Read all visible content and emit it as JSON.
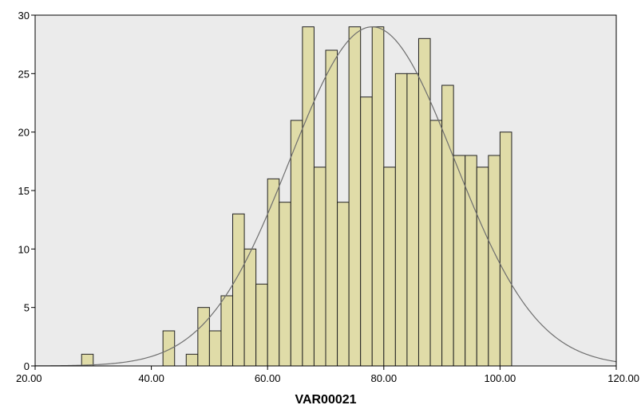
{
  "chart_data": {
    "type": "bar",
    "subtype": "histogram",
    "xlabel": "VAR00021",
    "ylabel": "",
    "xlim": [
      20,
      120
    ],
    "ylim": [
      0,
      30
    ],
    "x_ticks": [
      "20.00",
      "40.00",
      "60.00",
      "80.00",
      "100.00",
      "120.00"
    ],
    "y_ticks": [
      "0",
      "5",
      "10",
      "15",
      "20",
      "25",
      "30"
    ],
    "bin_width": 2,
    "bins": [
      {
        "x": 28,
        "count": 1
      },
      {
        "x": 42,
        "count": 3
      },
      {
        "x": 46,
        "count": 1
      },
      {
        "x": 48,
        "count": 5
      },
      {
        "x": 50,
        "count": 3
      },
      {
        "x": 52,
        "count": 6
      },
      {
        "x": 54,
        "count": 13
      },
      {
        "x": 56,
        "count": 10
      },
      {
        "x": 58,
        "count": 7
      },
      {
        "x": 60,
        "count": 16
      },
      {
        "x": 62,
        "count": 14
      },
      {
        "x": 64,
        "count": 21
      },
      {
        "x": 66,
        "count": 29
      },
      {
        "x": 68,
        "count": 17
      },
      {
        "x": 70,
        "count": 27
      },
      {
        "x": 72,
        "count": 14
      },
      {
        "x": 74,
        "count": 29
      },
      {
        "x": 76,
        "count": 23
      },
      {
        "x": 78,
        "count": 29
      },
      {
        "x": 80,
        "count": 17
      },
      {
        "x": 82,
        "count": 25
      },
      {
        "x": 84,
        "count": 25
      },
      {
        "x": 86,
        "count": 28
      },
      {
        "x": 88,
        "count": 21
      },
      {
        "x": 90,
        "count": 24
      },
      {
        "x": 92,
        "count": 18
      },
      {
        "x": 94,
        "count": 18
      },
      {
        "x": 96,
        "count": 17
      },
      {
        "x": 98,
        "count": 18
      },
      {
        "x": 100,
        "count": 20
      }
    ],
    "normal_curve": {
      "mean": 78,
      "sd": 14.2,
      "peak": 29
    },
    "grid": false,
    "legend": "none",
    "colors": {
      "bar_fill": "#e0dca8",
      "bar_stroke": "#222222",
      "plot_background": "#ebebeb",
      "curve": "#6e6e6e"
    }
  }
}
